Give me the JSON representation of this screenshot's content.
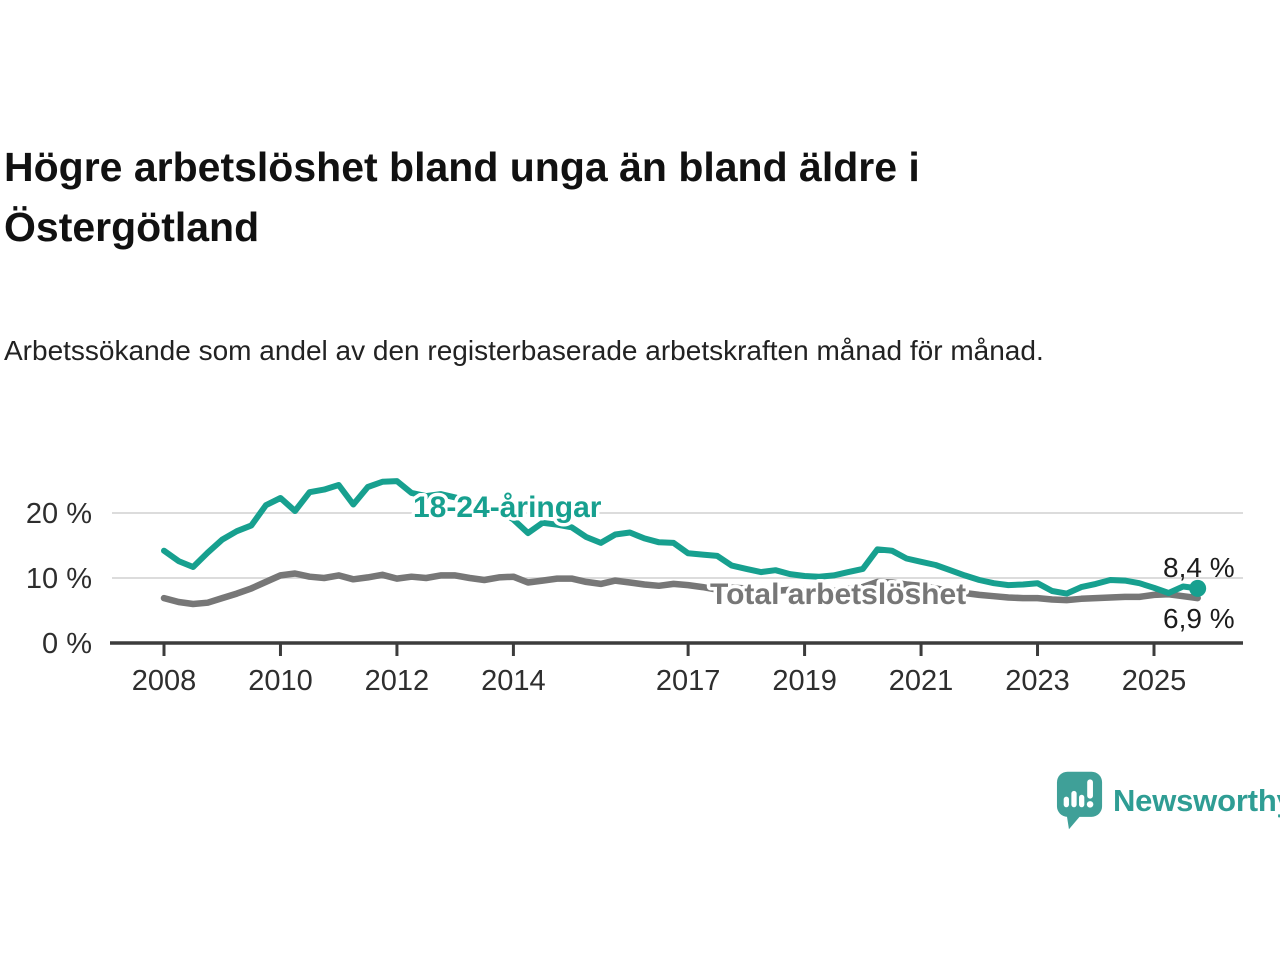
{
  "header": {
    "title": "Högre arbetslöshet bland unga än bland äldre i Östergötland",
    "subtitle": "Arbetssökande som andel av den registerbaserade arbetskraften månad för månad."
  },
  "chart_data": {
    "type": "line",
    "title": "Högre arbetslöshet bland unga än bland äldre i Östergötland",
    "y_unit": "%",
    "grid": "horizontal gridlines at 10 % and 20 %",
    "legend_position": "inline labels next to lines",
    "x_start_year": 2008,
    "x_step_years": 0.25,
    "x_end_year": 2025.75,
    "xlim": [
      2007.1,
      2026.6
    ],
    "ylim": [
      0,
      27
    ],
    "y_ticks": [
      {
        "value": 0,
        "label": "0 %"
      },
      {
        "value": 10,
        "label": "10 %"
      },
      {
        "value": 20,
        "label": "20 %"
      }
    ],
    "x_ticks": [
      {
        "value": 2008,
        "label": "2008"
      },
      {
        "value": 2010,
        "label": "2010"
      },
      {
        "value": 2012,
        "label": "2012"
      },
      {
        "value": 2014,
        "label": "2014"
      },
      {
        "value": 2017,
        "label": "2017"
      },
      {
        "value": 2019,
        "label": "2019"
      },
      {
        "value": 2021,
        "label": "2021"
      },
      {
        "value": 2023,
        "label": "2023"
      },
      {
        "value": 2025,
        "label": "2025"
      }
    ],
    "series": [
      {
        "name": "18-24-åringar",
        "color": "#17a08f",
        "end_label": "8,4 %",
        "end_value": 8.4,
        "values": [
          14.2,
          12.6,
          11.7,
          13.9,
          15.9,
          17.2,
          18.1,
          21.2,
          22.3,
          20.3,
          23.2,
          23.6,
          24.3,
          21.3,
          24.0,
          24.8,
          24.9,
          23.1,
          22.6,
          22.9,
          22.4,
          21.7,
          21.1,
          20.4,
          19.0,
          16.9,
          18.5,
          18.2,
          17.8,
          16.3,
          15.4,
          16.7,
          17.0,
          16.1,
          15.5,
          15.4,
          13.8,
          13.6,
          13.4,
          11.9,
          11.4,
          10.9,
          11.2,
          10.6,
          10.3,
          10.2,
          10.4,
          10.9,
          11.4,
          14.4,
          14.2,
          13.0,
          12.5,
          12.0,
          11.2,
          10.4,
          9.7,
          9.2,
          8.9,
          9.0,
          9.2,
          8.0,
          7.6,
          8.6,
          9.1,
          9.7,
          9.6,
          9.2,
          8.5,
          7.7,
          8.7,
          8.4
        ]
      },
      {
        "name": "Total arbetslöshet",
        "color": "#777777",
        "end_label": "6,9 %",
        "end_value": 6.9,
        "values": [
          6.9,
          6.3,
          6.0,
          6.2,
          6.9,
          7.6,
          8.4,
          9.4,
          10.4,
          10.7,
          10.2,
          10.0,
          10.4,
          9.8,
          10.1,
          10.5,
          9.9,
          10.2,
          10.0,
          10.4,
          10.4,
          10.0,
          9.7,
          10.1,
          10.2,
          9.3,
          9.6,
          9.9,
          9.9,
          9.4,
          9.1,
          9.6,
          9.3,
          9.0,
          8.8,
          9.1,
          8.9,
          8.6,
          8.2,
          8.5,
          8.4,
          8.1,
          8.0,
          8.2,
          8.1,
          7.9,
          8.0,
          8.3,
          8.6,
          9.4,
          9.3,
          9.0,
          8.8,
          8.4,
          8.0,
          7.7,
          7.4,
          7.2,
          7.0,
          6.9,
          6.9,
          6.7,
          6.6,
          6.8,
          6.9,
          7.0,
          7.1,
          7.1,
          7.4,
          7.5,
          7.2,
          6.9
        ]
      }
    ],
    "colors": {
      "youth_line": "#17a08f",
      "total_line": "#777777",
      "gridline": "#dcdcdc",
      "axis": "#3c3c3c",
      "end_labels": "#1c1c1c"
    }
  },
  "branding": {
    "name": "Newsworthy",
    "color": "#2f9d94"
  }
}
